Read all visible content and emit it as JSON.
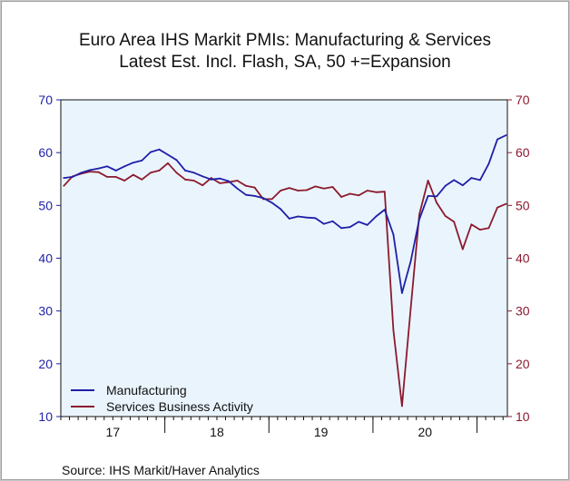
{
  "chart_data": {
    "type": "line",
    "title": "Euro Area IHS Markit PMIs: Manufacturing & Services",
    "subtitle": "Latest Est. Incl. Flash, SA, 50 +=Expansion",
    "source": "Source:  IHS Markit/Haver Analytics",
    "ylim": [
      10,
      70
    ],
    "yticks_left": [
      "10",
      "20",
      "30",
      "40",
      "50",
      "60",
      "70"
    ],
    "yticks_right": [
      "10",
      "20",
      "30",
      "40",
      "50",
      "60",
      "70"
    ],
    "x_year_labels": [
      "17",
      "18",
      "19",
      "20"
    ],
    "x": [
      "2017-01",
      "2017-02",
      "2017-03",
      "2017-04",
      "2017-05",
      "2017-06",
      "2017-07",
      "2017-08",
      "2017-09",
      "2017-10",
      "2017-11",
      "2017-12",
      "2018-01",
      "2018-02",
      "2018-03",
      "2018-04",
      "2018-05",
      "2018-06",
      "2018-07",
      "2018-08",
      "2018-09",
      "2018-10",
      "2018-11",
      "2018-12",
      "2019-01",
      "2019-02",
      "2019-03",
      "2019-04",
      "2019-05",
      "2019-06",
      "2019-07",
      "2019-08",
      "2019-09",
      "2019-10",
      "2019-11",
      "2019-12",
      "2020-01",
      "2020-02",
      "2020-03",
      "2020-04",
      "2020-05",
      "2020-06",
      "2020-07",
      "2020-08",
      "2020-09",
      "2020-10",
      "2020-11",
      "2020-12",
      "2021-01",
      "2021-02",
      "2021-03",
      "2021-04"
    ],
    "series": [
      {
        "name": "Manufacturing",
        "color": "#1f1fa8",
        "values": [
          55.2,
          55.4,
          56.2,
          56.7,
          57.0,
          57.4,
          56.6,
          57.4,
          58.1,
          58.5,
          60.1,
          60.6,
          59.6,
          58.6,
          56.6,
          56.2,
          55.5,
          54.9,
          55.1,
          54.6,
          53.2,
          52.0,
          51.8,
          51.4,
          50.5,
          49.3,
          47.5,
          47.9,
          47.7,
          47.6,
          46.5,
          47.0,
          45.7,
          45.9,
          46.9,
          46.3,
          47.9,
          49.2,
          44.5,
          33.4,
          39.4,
          47.4,
          51.8,
          51.7,
          53.7,
          54.8,
          53.8,
          55.2,
          54.8,
          57.9,
          62.5,
          63.3
        ]
      },
      {
        "name": "Services Business Activity",
        "color": "#8b1a2e",
        "values": [
          53.7,
          55.5,
          56.0,
          56.4,
          56.3,
          55.4,
          55.4,
          54.7,
          55.8,
          54.9,
          56.2,
          56.6,
          58.0,
          56.2,
          54.9,
          54.7,
          53.8,
          55.2,
          54.2,
          54.4,
          54.7,
          53.7,
          53.4,
          51.2,
          51.2,
          52.8,
          53.3,
          52.8,
          52.9,
          53.6,
          53.2,
          53.5,
          51.6,
          52.2,
          51.9,
          52.8,
          52.5,
          52.6,
          26.4,
          12.0,
          30.5,
          48.3,
          54.7,
          50.5,
          48.0,
          46.9,
          41.7,
          46.4,
          45.4,
          45.7,
          49.6,
          50.3
        ]
      }
    ],
    "grid": false,
    "legend_position": "bottom-left"
  }
}
